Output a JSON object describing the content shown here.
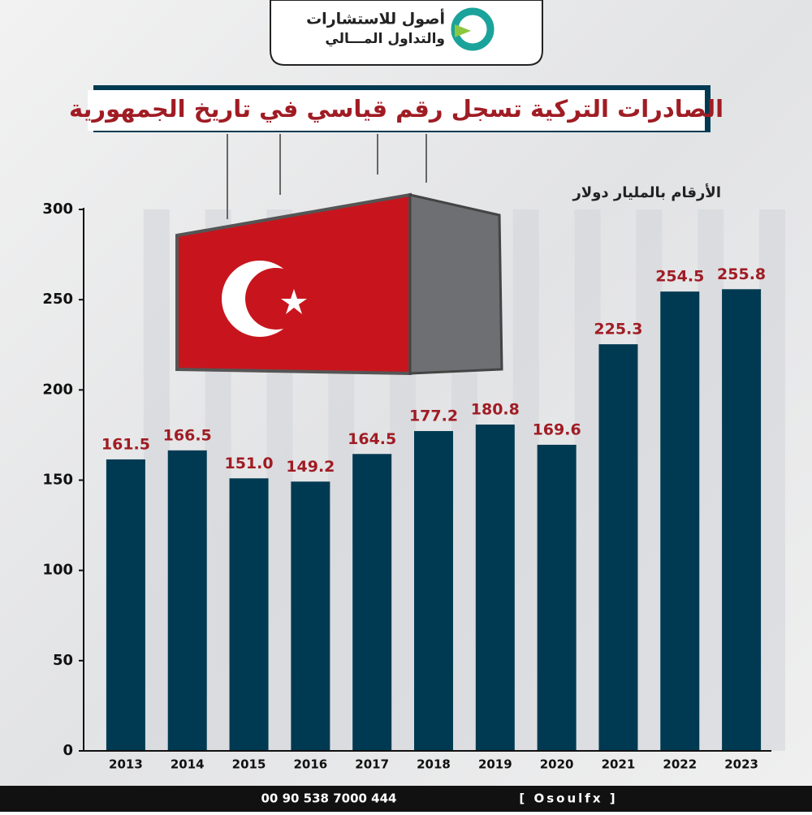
{
  "header": {
    "logo_line1": "أصول للاستشارات",
    "logo_line2": "والتداول المـــالي"
  },
  "chart_data": {
    "type": "bar",
    "title": "الصادرات التركية تسجل رقم قياسي في تاريخ الجمهورية",
    "subtitle": "الأرقام بالمليار دولار",
    "categories": [
      "2013",
      "2014",
      "2015",
      "2016",
      "2017",
      "2018",
      "2019",
      "2020",
      "2021",
      "2022",
      "2023"
    ],
    "values": [
      161.5,
      166.5,
      151.0,
      149.2,
      164.5,
      177.2,
      180.8,
      169.6,
      225.3,
      254.5,
      255.8
    ],
    "value_labels": [
      "161.5",
      "166.5",
      "151.0",
      "149.2",
      "164.5",
      "177.2",
      "180.8",
      "169.6",
      "225.3",
      "254.5",
      "255.8"
    ],
    "color": "#003a52",
    "label_color": "#a01c24",
    "ylim": [
      0,
      300
    ],
    "yticks": [
      0,
      50,
      100,
      150,
      200,
      250,
      300
    ]
  },
  "footer": {
    "phone": "00 90 538 7000 444",
    "handle": "[ Osoulfx ]"
  }
}
